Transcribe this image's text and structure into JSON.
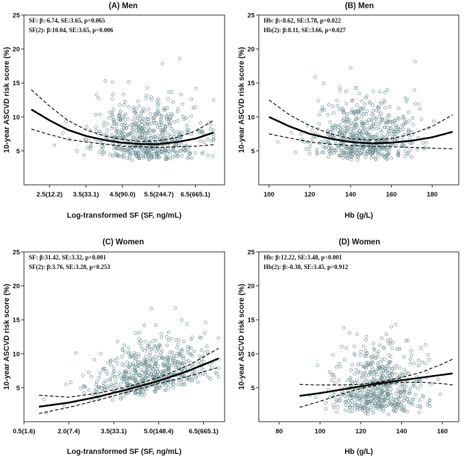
{
  "chart_data": [
    {
      "type": "scatter",
      "title": "(A)  Men",
      "xlabel": "Log-transformed SF (SF, ng/mL)",
      "ylabel": "10-year ASCVD risk score (%)",
      "xlim": [
        1.8,
        7.3
      ],
      "ylim": [
        0,
        25
      ],
      "xticks": [
        2.5,
        3.5,
        4.5,
        5.5,
        6.5
      ],
      "xtick_labels": [
        "2.5(12.2)",
        "3.5(33.1)",
        "4.5(90.0)",
        "5.5(244.7)",
        "6.5(665.1)"
      ],
      "yticks": [
        5,
        10,
        15,
        20,
        25
      ],
      "annotations": [
        "SF: β:-6.74, SE:3.65, p=0.065",
        "SF(2): β:10.04, SE:3.65, p=0.006"
      ],
      "scatter": {
        "n": 620,
        "x_center": 5.1,
        "x_sd": 0.75,
        "y_base": 3.5,
        "y_spread": 4.0,
        "x_range": [
          2.0,
          7.0
        ]
      },
      "fit": {
        "x": [
          2.0,
          2.5,
          3.0,
          3.5,
          4.0,
          4.5,
          5.0,
          5.5,
          6.0,
          6.5,
          7.0
        ],
        "y": [
          11.1,
          9.5,
          8.1,
          7.2,
          6.6,
          6.2,
          6.0,
          6.0,
          6.3,
          6.8,
          7.7
        ]
      },
      "ci_upper": {
        "x": [
          2.0,
          2.5,
          3.0,
          3.5,
          4.0,
          4.5,
          5.0,
          5.5,
          6.0,
          6.5,
          7.0
        ],
        "y": [
          14.0,
          11.6,
          9.5,
          8.1,
          7.2,
          6.7,
          6.4,
          6.5,
          7.0,
          7.9,
          9.5
        ]
      },
      "ci_lower": {
        "x": [
          2.0,
          2.5,
          3.0,
          3.5,
          4.0,
          4.5,
          5.0,
          5.5,
          6.0,
          6.5,
          7.0
        ],
        "y": [
          8.2,
          7.4,
          6.7,
          6.3,
          6.0,
          5.7,
          5.6,
          5.5,
          5.6,
          5.7,
          5.9
        ]
      }
    },
    {
      "type": "scatter",
      "title": "(B)  Men",
      "xlabel": "Hb (g/L)",
      "ylabel": "10-year ASCVD risk score (%)",
      "xlim": [
        95,
        193
      ],
      "ylim": [
        0,
        25
      ],
      "xticks": [
        100,
        120,
        140,
        160,
        180
      ],
      "xtick_labels": [
        "100",
        "120",
        "140",
        "160",
        "180"
      ],
      "yticks": [
        5,
        10,
        15,
        20,
        25
      ],
      "annotations": [
        "Hb: β:-8.62, SE:3.78, p=0.022",
        "Hb(2): β:8.11, SE:3.66, p=0.027"
      ],
      "scatter": {
        "n": 620,
        "x_center": 146,
        "x_sd": 13,
        "y_base": 3.5,
        "y_spread": 4.0,
        "x_range": [
          100,
          190
        ]
      },
      "fit": {
        "x": [
          100,
          110,
          120,
          130,
          140,
          150,
          160,
          170,
          180,
          190
        ],
        "y": [
          10.0,
          8.6,
          7.5,
          6.8,
          6.3,
          6.1,
          6.2,
          6.5,
          7.0,
          7.8
        ]
      },
      "ci_upper": {
        "x": [
          100,
          110,
          120,
          130,
          140,
          150,
          160,
          170,
          180,
          190
        ],
        "y": [
          12.5,
          10.3,
          8.7,
          7.5,
          6.8,
          6.6,
          6.8,
          7.5,
          8.6,
          10.3
        ]
      },
      "ci_lower": {
        "x": [
          100,
          110,
          120,
          130,
          140,
          150,
          160,
          170,
          180,
          190
        ],
        "y": [
          7.5,
          6.9,
          6.3,
          6.0,
          5.8,
          5.7,
          5.6,
          5.5,
          5.4,
          5.3
        ]
      }
    },
    {
      "type": "scatter",
      "title": "(C)  Women",
      "xlabel": "Log-transformed SF (SF, ng/mL)",
      "ylabel": "10-year ASCVD risk score (%)",
      "xlim": [
        0.5,
        7.2
      ],
      "ylim": [
        0,
        25
      ],
      "xticks": [
        0.5,
        2.0,
        3.5,
        5.0,
        6.5
      ],
      "xtick_labels": [
        "0.5(1.6)",
        "2.0(7.4)",
        "3.5(33.1)",
        "5.0(148.4)",
        "6.5(665.1)"
      ],
      "yticks": [
        5,
        10,
        15,
        20,
        25
      ],
      "annotations": [
        "SF: β:31.42, SE:3.32, p<0.001",
        "SF(2): β:3.76, SE:3.28, p=0.253"
      ],
      "scatter": {
        "n": 580,
        "x_center": 4.7,
        "x_sd": 1.0,
        "y_base": 0.6,
        "y_spread": 3.5,
        "x_range": [
          1.0,
          7.0
        ],
        "trend": "increasing"
      },
      "fit": {
        "x": [
          1.0,
          2.0,
          3.0,
          4.0,
          5.0,
          6.0,
          7.0
        ],
        "y": [
          2.2,
          2.8,
          3.7,
          4.8,
          6.0,
          7.5,
          9.3
        ]
      },
      "ci_upper": {
        "x": [
          1.0,
          2.0,
          3.0,
          4.0,
          5.0,
          6.0,
          7.0
        ],
        "y": [
          3.9,
          3.6,
          4.2,
          5.2,
          6.5,
          8.3,
          10.8
        ]
      },
      "ci_lower": {
        "x": [
          1.0,
          2.0,
          3.0,
          4.0,
          5.0,
          6.0,
          7.0
        ],
        "y": [
          1.2,
          2.1,
          3.2,
          4.4,
          5.6,
          6.7,
          8.0
        ]
      }
    },
    {
      "type": "scatter",
      "title": "(D)  Women",
      "xlabel": "Hb (g/L)",
      "ylabel": "10-year ASCVD risk score (%)",
      "xlim": [
        70,
        168
      ],
      "ylim": [
        0,
        25
      ],
      "xticks": [
        80,
        100,
        120,
        140,
        160
      ],
      "xtick_labels": [
        "80",
        "100",
        "120",
        "140",
        "160"
      ],
      "yticks": [
        5,
        10,
        15,
        20,
        25
      ],
      "annotations": [
        "Hb: β:12.22, SE:3.48, p<0.001",
        "Hb(2): β:-0.38, SE:3.45, p=0.912"
      ],
      "scatter": {
        "n": 580,
        "x_center": 128,
        "x_sd": 11,
        "y_base": 1.0,
        "y_spread": 4.5,
        "x_range": [
          90,
          163
        ]
      },
      "fit": {
        "x": [
          90,
          100,
          110,
          120,
          130,
          140,
          150,
          160,
          165
        ],
        "y": [
          3.8,
          4.2,
          4.7,
          5.2,
          5.7,
          6.1,
          6.5,
          6.9,
          7.1
        ]
      },
      "ci_upper": {
        "x": [
          90,
          100,
          110,
          120,
          130,
          140,
          150,
          160,
          165
        ],
        "y": [
          5.5,
          5.4,
          5.4,
          5.5,
          5.9,
          6.5,
          7.3,
          8.5,
          9.2
        ]
      },
      "ci_lower": {
        "x": [
          90,
          100,
          110,
          120,
          130,
          140,
          150,
          160,
          165
        ],
        "y": [
          2.1,
          3.0,
          4.0,
          4.9,
          5.5,
          5.8,
          5.8,
          5.6,
          5.4
        ]
      }
    }
  ]
}
